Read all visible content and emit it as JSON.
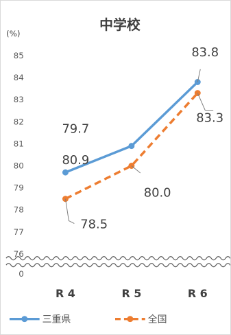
{
  "chart_data": {
    "type": "line",
    "title": "中学校",
    "ylabel": "(%)",
    "categories": [
      "R 4",
      "R 5",
      "R 6"
    ],
    "y_ticks": [
      "85",
      "84",
      "83",
      "82",
      "81",
      "80",
      "79",
      "78",
      "77",
      "76"
    ],
    "y_zero_label": "0",
    "ylim": [
      76,
      85
    ],
    "y_axis_break": true,
    "grid": false,
    "legend_position": "bottom",
    "series": [
      {
        "name": "三重県",
        "values": [
          79.7,
          80.9,
          83.8
        ],
        "labels": [
          "79.7",
          "80.9",
          "83.8"
        ],
        "color": "#5b9bd5",
        "line_style": "solid"
      },
      {
        "name": "全国",
        "values": [
          78.5,
          80.0,
          83.3
        ],
        "labels": [
          "78.5",
          "80.0",
          "83.3"
        ],
        "color": "#ed7d31",
        "line_style": "dashed"
      }
    ]
  }
}
